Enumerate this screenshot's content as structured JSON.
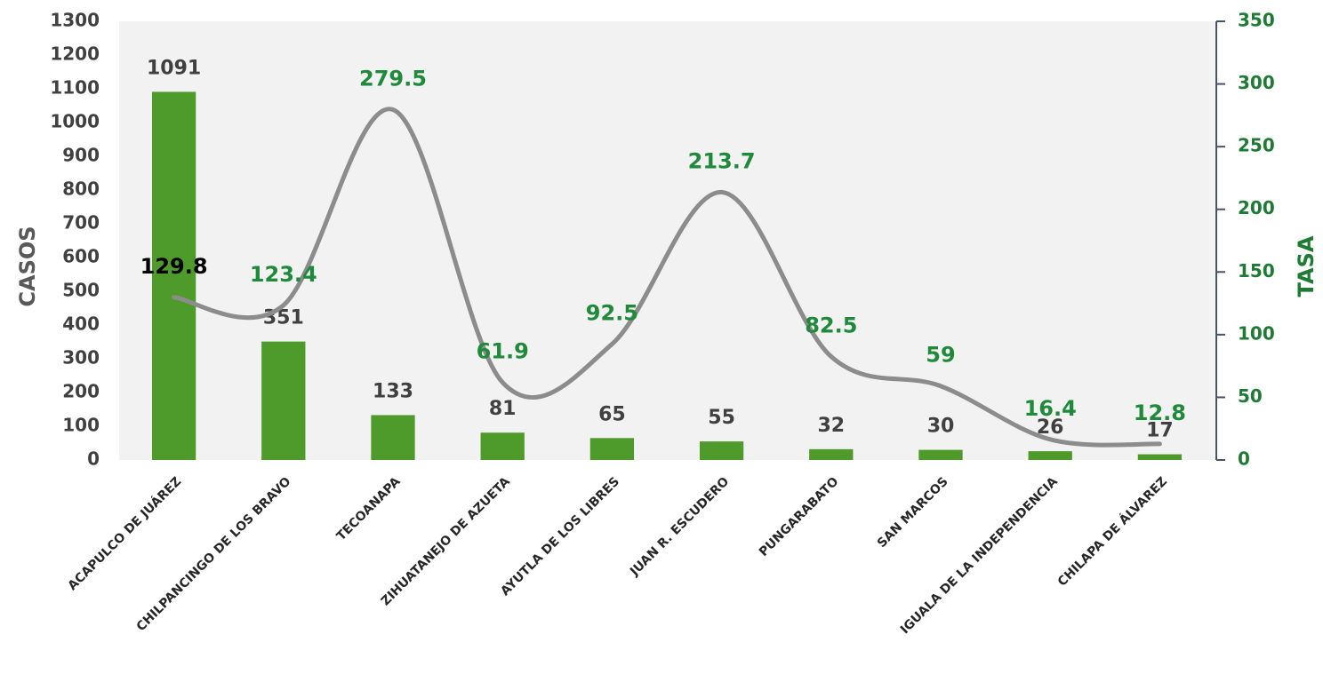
{
  "chart_data": {
    "type": "bar",
    "categories": [
      "ACAPULCO DE JUÁREZ",
      "CHILPANCINGO DE LOS BRAVO",
      "TECOANAPA",
      "ZIHUATANEJO DE AZUETA",
      "AYUTLA DE LOS LIBRES",
      "JUAN R. ESCUDERO",
      "PUNGARABATO",
      "SAN MARCOS",
      "IGUALA DE LA INDEPENDENCIA",
      "CHILAPA DE ÁLVAREZ"
    ],
    "series": [
      {
        "type": "bar",
        "color": "#4e9a2a",
        "values": [
          1091,
          351,
          133,
          81,
          65,
          55,
          32,
          30,
          26,
          17
        ]
      },
      {
        "type": "line",
        "axis": "y2",
        "color": "#8c8c8c",
        "values": [
          129.8,
          123.4,
          279.5,
          61.9,
          92.5,
          213.7,
          82.5,
          59,
          16.4,
          12.8
        ]
      }
    ],
    "y_label": "CASOS",
    "y2_label": "TASA",
    "ylim": [
      0,
      1300
    ],
    "yticks": [
      0,
      100,
      200,
      300,
      400,
      500,
      600,
      700,
      800,
      900,
      1000,
      1100,
      1200,
      1300
    ],
    "y2lim": [
      0,
      350
    ],
    "y2ticks": [
      0,
      50,
      100,
      150,
      200,
      250,
      300,
      350
    ]
  }
}
